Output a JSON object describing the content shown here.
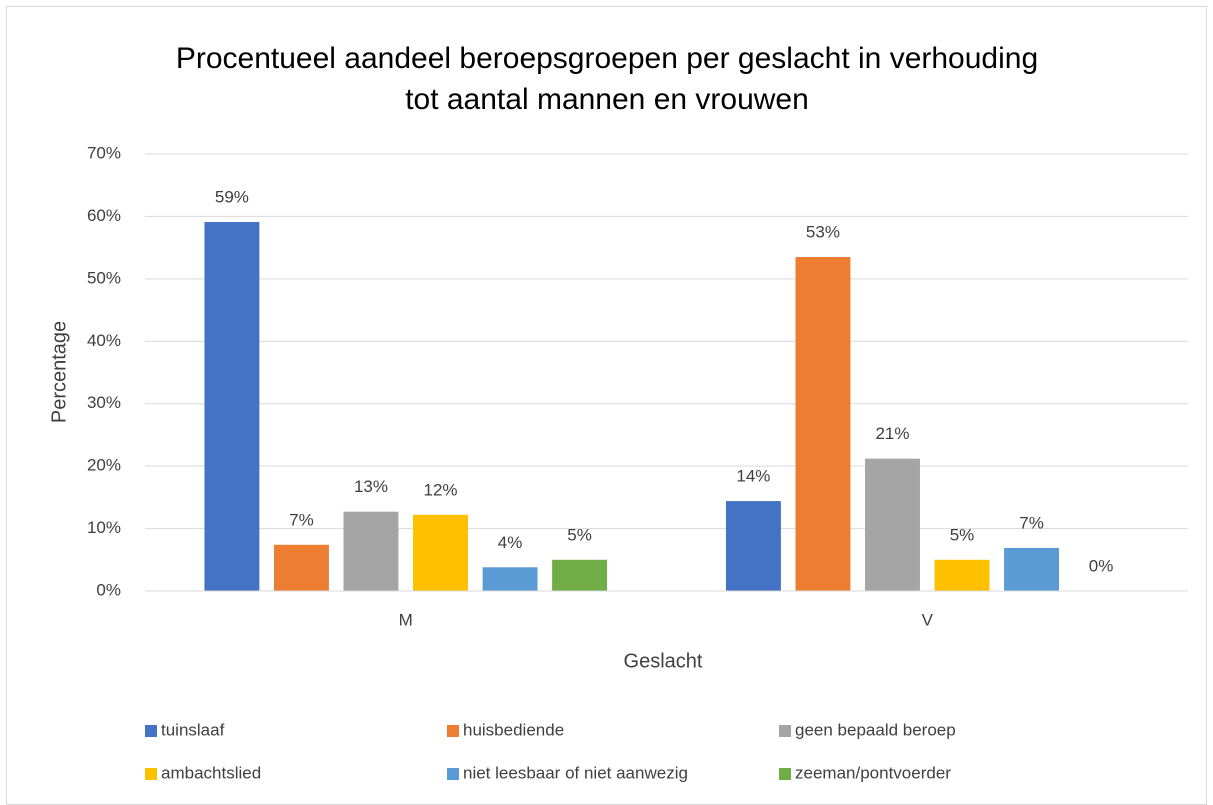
{
  "chart_data": {
    "type": "bar",
    "title": "Procentueel aandeel beroepsgroepen per geslacht in verhouding tot aantal mannen en vrouwen",
    "x_label": "Geslacht",
    "y_label": "Percentage",
    "categories": [
      "M",
      "V"
    ],
    "series": [
      {
        "name": "tuinslaaf",
        "color": "#4472c4",
        "values": [
          59.1,
          14.4
        ],
        "value_labels": [
          "59%",
          "14%"
        ]
      },
      {
        "name": "huisbediende",
        "color": "#ed7d31",
        "values": [
          7.4,
          53.5
        ],
        "value_labels": [
          "7%",
          "53%"
        ]
      },
      {
        "name": "geen bepaald beroep",
        "color": "#a5a5a5",
        "values": [
          12.7,
          21.2
        ],
        "value_labels": [
          "13%",
          "21%"
        ]
      },
      {
        "name": "ambachtslied",
        "color": "#ffc000",
        "values": [
          12.2,
          5.0
        ],
        "value_labels": [
          "12%",
          "5%"
        ]
      },
      {
        "name": "niet leesbaar of niet aanwezig",
        "color": "#5b9bd5",
        "values": [
          3.8,
          6.9
        ],
        "value_labels": [
          "4%",
          "7%"
        ]
      },
      {
        "name": "zeeman/pontvoerder",
        "color": "#70ad47",
        "values": [
          5.0,
          0
        ],
        "value_labels": [
          "5%",
          "0%"
        ]
      }
    ],
    "ylim": [
      0,
      70
    ],
    "yticks": [
      {
        "value": 0,
        "label": "0%"
      },
      {
        "value": 10,
        "label": "10%"
      },
      {
        "value": 20,
        "label": "20%"
      },
      {
        "value": 30,
        "label": "30%"
      },
      {
        "value": 40,
        "label": "40%"
      },
      {
        "value": 50,
        "label": "50%"
      },
      {
        "value": 60,
        "label": "60%"
      },
      {
        "value": 70,
        "label": "70%"
      }
    ],
    "grid": true
  }
}
